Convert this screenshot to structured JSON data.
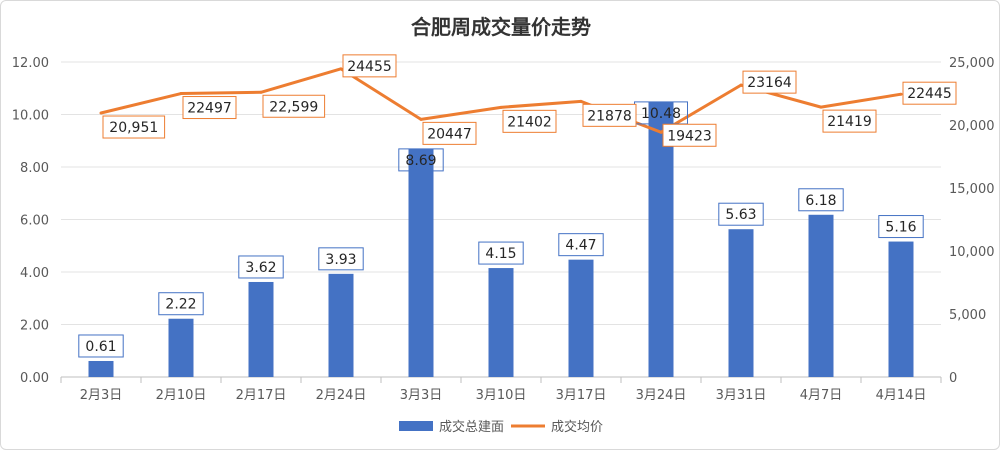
{
  "chart_data": {
    "type": "bar+line",
    "title": "合肥周成交量价走势",
    "categories": [
      "2月3日",
      "2月10日",
      "2月17日",
      "2月24日",
      "3月3日",
      "3月10日",
      "3月17日",
      "3月24日",
      "3月31日",
      "4月7日",
      "4月14日"
    ],
    "series": [
      {
        "name": "成交总建面",
        "type": "bar",
        "axis": "left",
        "color": "#4472c4",
        "values": [
          0.61,
          2.22,
          3.62,
          3.93,
          8.69,
          4.15,
          4.47,
          10.48,
          5.63,
          6.18,
          5.16
        ],
        "labels": [
          "0.61",
          "2.22",
          "3.62",
          "3.93",
          "8.69",
          "4.15",
          "4.47",
          "10.48",
          "5.63",
          "6.18",
          "5.16"
        ]
      },
      {
        "name": "成交均价",
        "type": "line",
        "axis": "right",
        "color": "#ed7d31",
        "values": [
          20951,
          22497,
          22599,
          24455,
          20447,
          21402,
          21878,
          19423,
          23164,
          21419,
          22445
        ],
        "labels": [
          "20,951",
          "22497",
          "22,599",
          "24455",
          "20447",
          "21402",
          "21878",
          "19423",
          "23164",
          "21419",
          "22445"
        ]
      }
    ],
    "y_left": {
      "range": [
        0,
        12
      ],
      "ticks": [
        "0.00",
        "2.00",
        "4.00",
        "6.00",
        "8.00",
        "10.00",
        "12.00"
      ]
    },
    "y_right": {
      "range": [
        0,
        25000
      ],
      "ticks": [
        "0",
        "5,000",
        "10,000",
        "15,000",
        "20,000",
        "25,000"
      ]
    },
    "grid": true,
    "legend": "bottom"
  }
}
